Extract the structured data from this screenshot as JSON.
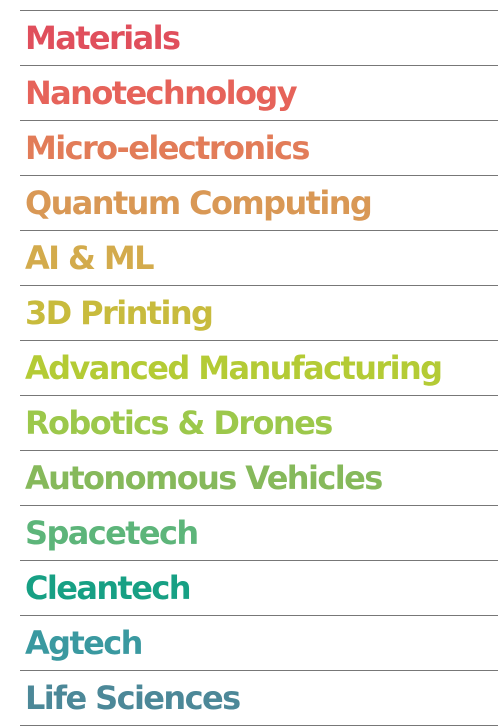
{
  "items": [
    {
      "label": "Materials",
      "color": "#e04f5c"
    },
    {
      "label": "Nanotechnology",
      "color": "#e6635a"
    },
    {
      "label": "Micro-electronics",
      "color": "#e27c58"
    },
    {
      "label": "Quantum Computing",
      "color": "#d99855"
    },
    {
      "label": "AI & ML",
      "color": "#d3ab4c"
    },
    {
      "label": "3D Printing",
      "color": "#c8bb3d"
    },
    {
      "label": "Advanced Manufacturing",
      "color": "#b4cb35"
    },
    {
      "label": "Robotics & Drones",
      "color": "#9cc84b"
    },
    {
      "label": "Autonomous Vehicles",
      "color": "#86b95b"
    },
    {
      "label": "Spacetech",
      "color": "#5db57a"
    },
    {
      "label": "Cleantech",
      "color": "#17a084"
    },
    {
      "label": "Agtech",
      "color": "#3a99a0"
    },
    {
      "label": "Life Sciences",
      "color": "#4c8898"
    }
  ]
}
